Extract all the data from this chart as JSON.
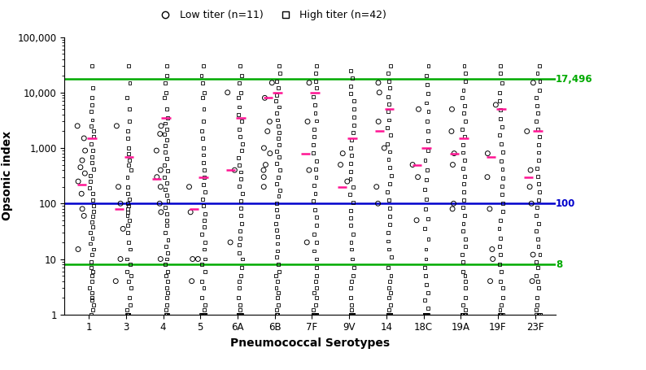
{
  "serotypes": [
    "1",
    "3",
    "4",
    "5",
    "6A",
    "6B",
    "7F",
    "9V",
    "14",
    "18C",
    "19A",
    "19F",
    "23F"
  ],
  "legend_low": "Low titer (n=11)",
  "legend_high": "High titer (n=42)",
  "xlabel": "Pneumococcal Serotypes",
  "ylabel": "Opsonic index",
  "hline_green1": 17496,
  "hline_blue": 100,
  "hline_green2": 8,
  "hline_green1_label": "17,496",
  "hline_blue_label": "100",
  "hline_green2_label": "8",
  "ylim_low": 1,
  "ylim_high": 100000,
  "green_color": "#00AA00",
  "blue_color": "#0000CC",
  "pink_color": "#FF1493",
  "low_titer_data": {
    "1": [
      2500,
      1500,
      900,
      600,
      450,
      350,
      250,
      150,
      80,
      60,
      15
    ],
    "3": [
      2500,
      200,
      100,
      35,
      10,
      4
    ],
    "4": [
      2500,
      1800,
      900,
      400,
      300,
      200,
      100,
      70,
      10
    ],
    "5": [
      200,
      70,
      10,
      10,
      4
    ],
    "6A": [
      10000,
      400,
      20
    ],
    "6B": [
      15000,
      8000,
      3000,
      2000,
      1000,
      800,
      500,
      400,
      300,
      200
    ],
    "7F": [
      15000,
      3000,
      400,
      20
    ],
    "9V": [
      800,
      500,
      250
    ],
    "14": [
      15000,
      10000,
      3000,
      1000,
      200,
      100
    ],
    "18C": [
      5000,
      500,
      300,
      50
    ],
    "19A": [
      5000,
      2000,
      800,
      500,
      100,
      80
    ],
    "19F": [
      6000,
      800,
      300,
      80,
      15,
      10,
      4
    ],
    "23F": [
      15000,
      2000,
      400,
      200,
      100,
      12,
      4
    ]
  },
  "low_titer_gm": {
    "1": 220,
    "3": 80,
    "4": 280,
    "5": 80,
    "6A": 400,
    "6B": 8000,
    "7F": 800,
    "9V": 200,
    "14": 2000,
    "18C": 500,
    "19A": 800,
    "19F": 700,
    "23F": 300
  },
  "high_titer_data": {
    "1": [
      30000,
      12000,
      8000,
      6000,
      4500,
      3200,
      2500,
      2000,
      1600,
      1200,
      900,
      700,
      550,
      420,
      320,
      250,
      190,
      150,
      115,
      90,
      72,
      58,
      46,
      38,
      30,
      24,
      19,
      15,
      12,
      9,
      7,
      6,
      5,
      4,
      3,
      2.5,
      2,
      1.8,
      1.5,
      1.2,
      1
    ],
    "3": [
      30000,
      15000,
      8000,
      5000,
      3000,
      2000,
      1500,
      1000,
      800,
      600,
      500,
      400,
      300,
      200,
      150,
      120,
      100,
      90,
      80,
      70,
      60,
      50,
      40,
      30,
      20,
      15,
      10,
      8,
      6,
      5,
      4,
      3,
      2,
      1.5,
      1.2,
      1,
      1,
      1,
      1,
      1,
      1,
      1
    ],
    "4": [
      30000,
      20000,
      15000,
      10000,
      8000,
      5000,
      3500,
      2800,
      2200,
      1800,
      1400,
      1100,
      850,
      650,
      500,
      390,
      300,
      235,
      180,
      140,
      110,
      85,
      65,
      50,
      40,
      30,
      22,
      17,
      13,
      10,
      8,
      6,
      5,
      4,
      3,
      2.5,
      2,
      1.5,
      1.2,
      1,
      1,
      1
    ],
    "5": [
      30000,
      20000,
      15000,
      10000,
      8000,
      5000,
      3000,
      2000,
      1500,
      1000,
      750,
      550,
      400,
      300,
      220,
      160,
      120,
      90,
      65,
      50,
      38,
      28,
      20,
      15,
      10,
      8,
      6,
      4,
      3,
      2,
      1.5,
      1.2,
      1,
      1,
      1,
      1,
      1,
      1,
      1,
      1,
      1,
      1
    ],
    "6A": [
      30000,
      20000,
      15000,
      10000,
      8000,
      5500,
      4000,
      3000,
      2200,
      1600,
      1200,
      900,
      670,
      500,
      370,
      275,
      205,
      150,
      110,
      82,
      60,
      44,
      32,
      24,
      18,
      13,
      10,
      7,
      5,
      4,
      3,
      2,
      1.5,
      1.2,
      1,
      1,
      1,
      1,
      1,
      1,
      1,
      1
    ],
    "6B": [
      30000,
      22000,
      16000,
      12000,
      9000,
      7000,
      5500,
      4200,
      3200,
      2500,
      1900,
      1500,
      1150,
      880,
      680,
      520,
      400,
      300,
      230,
      175,
      135,
      100,
      77,
      58,
      44,
      33,
      25,
      19,
      14,
      11,
      8,
      6,
      5,
      4,
      3,
      2.5,
      2,
      1.5,
      1.2,
      1,
      1,
      1
    ],
    "7F": [
      30000,
      22000,
      16000,
      12000,
      8500,
      6000,
      4300,
      3100,
      2200,
      1600,
      1150,
      820,
      590,
      420,
      300,
      215,
      153,
      110,
      78,
      56,
      40,
      28,
      20,
      14,
      10,
      7,
      5,
      4,
      3,
      2.5,
      2,
      1.5,
      1.2,
      1,
      1,
      1,
      1,
      1,
      1,
      1,
      1,
      1
    ],
    "9V": [
      25000,
      18000,
      13000,
      9500,
      7000,
      5000,
      3600,
      2600,
      1900,
      1400,
      1000,
      730,
      530,
      380,
      275,
      200,
      145,
      105,
      75,
      55,
      40,
      28,
      20,
      15,
      10,
      7,
      5,
      4,
      3,
      2,
      1.5,
      1.2,
      1,
      1,
      1,
      1,
      1,
      1,
      1,
      1,
      1,
      1
    ],
    "14": [
      30000,
      22000,
      16000,
      12000,
      8500,
      6200,
      4500,
      3200,
      2300,
      1700,
      1200,
      860,
      620,
      440,
      315,
      225,
      160,
      115,
      82,
      58,
      42,
      30,
      21,
      15,
      11,
      7,
      5,
      4,
      3,
      2.5,
      2,
      1.5,
      1.2,
      1,
      1,
      1,
      1,
      1,
      1,
      1,
      1,
      1
    ],
    "18C": [
      30000,
      20000,
      14000,
      9500,
      6500,
      4500,
      3000,
      2000,
      1350,
      900,
      600,
      400,
      270,
      180,
      120,
      80,
      53,
      35,
      23,
      15,
      10,
      7,
      5,
      3.5,
      2.5,
      1.8,
      1.3,
      1,
      1,
      1,
      1,
      1,
      1,
      1,
      1,
      1,
      1,
      1,
      1,
      1,
      1,
      1
    ],
    "19A": [
      30000,
      22000,
      16000,
      11000,
      8000,
      5800,
      4200,
      3000,
      2200,
      1600,
      1150,
      830,
      600,
      430,
      310,
      225,
      162,
      117,
      84,
      61,
      44,
      32,
      23,
      17,
      12,
      9,
      6,
      5,
      4,
      3,
      2,
      1.5,
      1.2,
      1,
      1,
      1,
      1,
      1,
      1,
      1,
      1,
      1
    ],
    "19F": [
      30000,
      22000,
      15000,
      10000,
      7000,
      4900,
      3400,
      2400,
      1700,
      1200,
      840,
      590,
      415,
      290,
      205,
      144,
      101,
      71,
      50,
      35,
      24,
      17,
      12,
      8,
      6,
      4,
      3,
      2,
      1.5,
      1.2,
      1,
      1,
      1,
      1,
      1,
      1,
      1,
      1,
      1,
      1,
      1,
      1
    ],
    "23F": [
      30000,
      22000,
      16000,
      11000,
      8000,
      5800,
      4200,
      3000,
      2200,
      1600,
      1150,
      830,
      600,
      430,
      310,
      225,
      162,
      117,
      84,
      61,
      44,
      32,
      23,
      17,
      12,
      9,
      7,
      5,
      4,
      3,
      2,
      1.5,
      1.2,
      1,
      1,
      1,
      1,
      1,
      1,
      1,
      1,
      1
    ]
  },
  "high_titer_gm": {
    "1": 1500,
    "3": 700,
    "4": 3500,
    "5": 300,
    "6A": 3500,
    "6B": 10000,
    "7F": 10000,
    "9V": 1500,
    "14": 5000,
    "18C": 1000,
    "19A": 1500,
    "19F": 5000,
    "23F": 2000
  }
}
